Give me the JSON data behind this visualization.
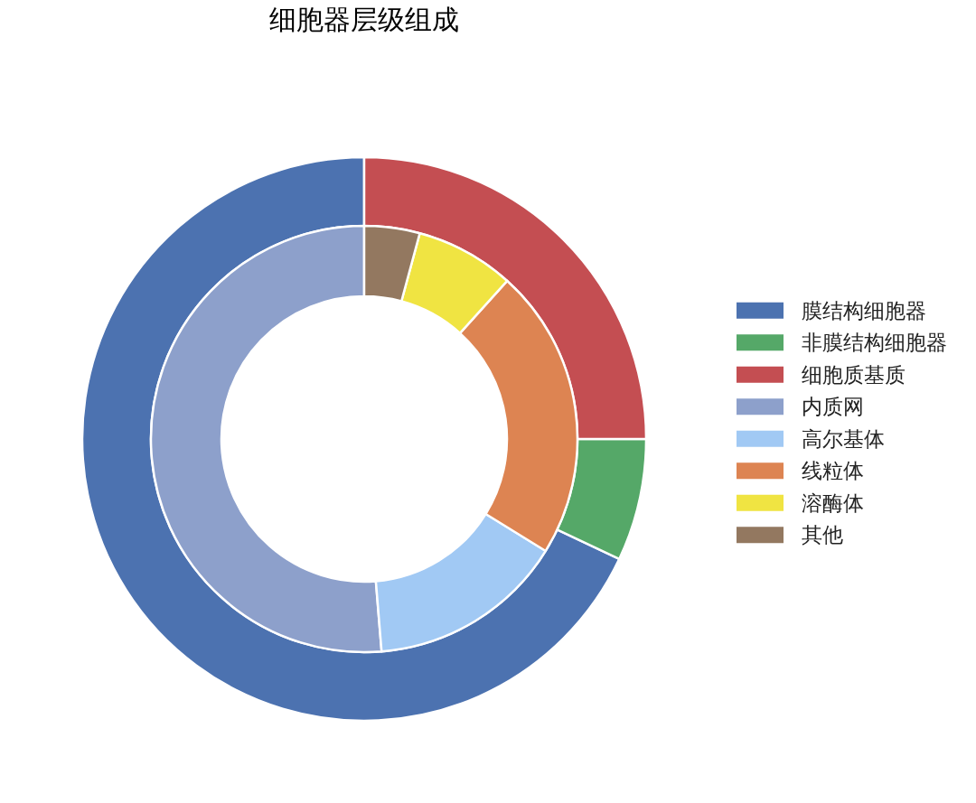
{
  "chart_data": {
    "type": "donut",
    "title": "细胞器层级组成",
    "categories": [
      "膜结构细胞器",
      "非膜结构细胞器",
      "细胞质基质",
      "内质网",
      "高尔基体",
      "线粒体",
      "溶酶体",
      "其他"
    ],
    "colors": [
      "#4c72b0",
      "#55a868",
      "#c44e52",
      "#8da0cb",
      "#a1c9f4",
      "#dd8452",
      "#f0e442",
      "#937860"
    ],
    "series": [
      {
        "values": [
          68,
          7,
          25,
          null,
          null,
          null,
          null,
          null
        ]
      },
      {
        "values": [
          null,
          null,
          null,
          51.3,
          14.9,
          22.1,
          7.5,
          4.2
        ]
      }
    ],
    "legend": "right"
  }
}
